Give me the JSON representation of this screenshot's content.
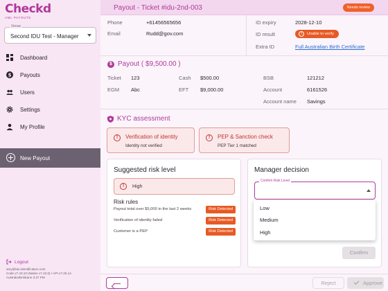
{
  "app": {
    "logo": "Checkd",
    "logo_sub": "AML PAYOUTS"
  },
  "sidebar": {
    "venue_label": "Venue",
    "venue_value": "Second IDU Test - Manager",
    "items": [
      {
        "label": "Dashboard",
        "icon": "dashboard-icon"
      },
      {
        "label": "Payouts",
        "icon": "dollar-icon"
      },
      {
        "label": "Users",
        "icon": "users-icon"
      },
      {
        "label": "Settings",
        "icon": "gear-icon"
      },
      {
        "label": "My Profile",
        "icon": "person-icon"
      }
    ],
    "new_payout": "New Payout",
    "logout": "Logout",
    "user_email": "amy@idu-identification.com",
    "version": "Code v7.43.10 (Native v7.43.0) • API v7.25.14",
    "timezone": "Australia/Brisbane 3:37 PM"
  },
  "header": {
    "title": "Payout - Ticket #idu-2nd-003",
    "status": "Needs review",
    "status_color": "#f0612a"
  },
  "contact": {
    "phone_label": "Phone",
    "phone": "+61456565656",
    "email_label": "Email",
    "email": "Rudd@gov.com"
  },
  "id": {
    "expiry_label": "ID expiry",
    "expiry": "2028-12-10",
    "result_label": "ID result",
    "result": "Unable to verify",
    "extra_label": "Extra ID",
    "extra": "Full Australian Birth Certificate"
  },
  "payout": {
    "title": "Payout ( $9,500.00 )",
    "ticket_label": "Ticket",
    "ticket": "123",
    "egm_label": "EGM",
    "egm": "Abc",
    "cash_label": "Cash",
    "cash": "$500.00",
    "eft_label": "EFT",
    "eft": "$9,000.00",
    "bsb_label": "BSB",
    "bsb": "121212",
    "account_label": "Account",
    "account": "6161526",
    "account_name_label": "Account name",
    "account_name": "Savings"
  },
  "kyc": {
    "title": "KYC assessment",
    "cards": [
      {
        "title": "Verification of identity",
        "status": "Identity not verified"
      },
      {
        "title": "PEP & Sanction check",
        "status": "PEP Tier 1 matched"
      }
    ]
  },
  "risk": {
    "title": "Suggested risk level",
    "level": "High",
    "rules_title": "Risk rules",
    "rules": [
      {
        "text": "Payout total over $5,000 in the last 2 weeks",
        "badge": "Risk Detected"
      },
      {
        "text": "Verification of identity failed",
        "badge": "Risk Detected"
      },
      {
        "text": "Customer is a PEP",
        "badge": "Risk Detected"
      }
    ]
  },
  "manager": {
    "title": "Manager decision",
    "select_label": "Confirm Risk Level",
    "options": [
      "Low",
      "Medium",
      "High"
    ],
    "confirm": "Confirm"
  },
  "footer": {
    "reject": "Reject",
    "approve": "Approve"
  },
  "colors": {
    "brand": "#b0399a",
    "danger": "#e75a24",
    "sidebar_bg": "#f8e6f5"
  }
}
